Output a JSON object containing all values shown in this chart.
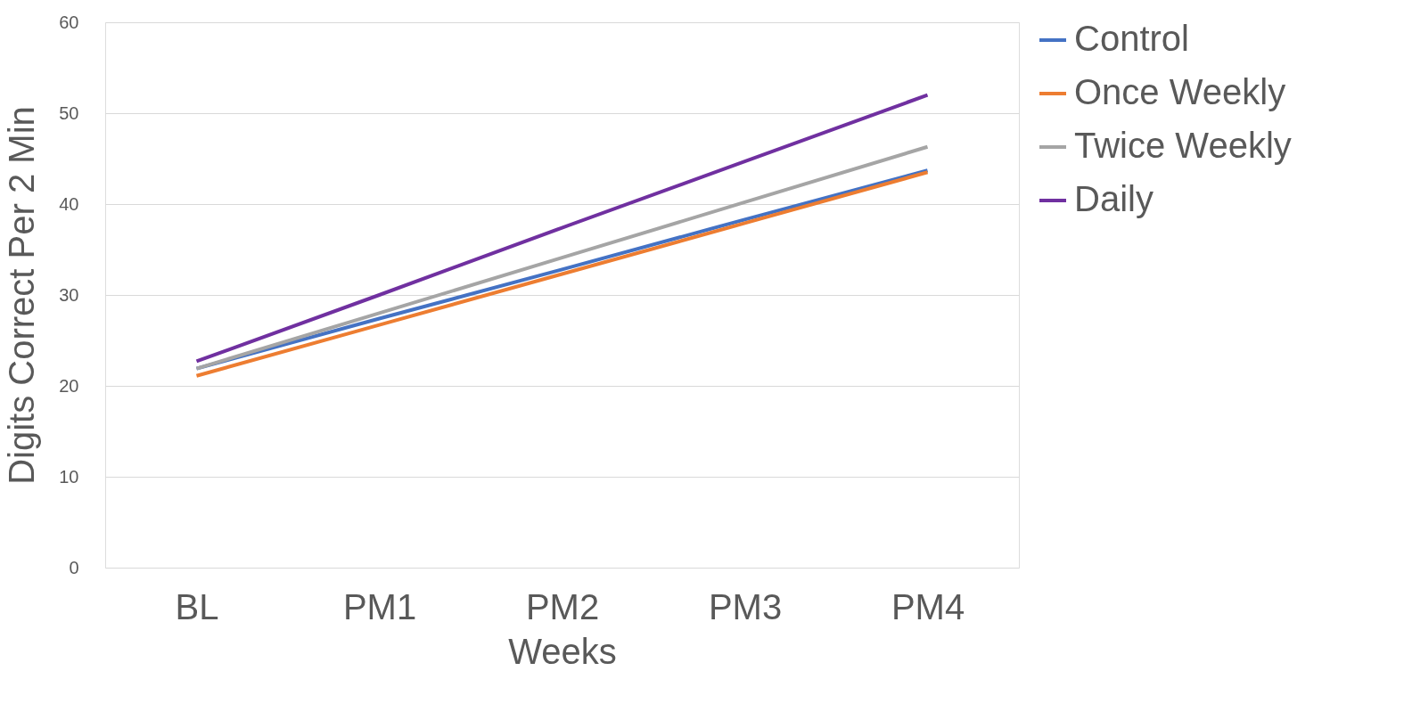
{
  "chart_data": {
    "type": "line",
    "xlabel": "Weeks",
    "ylabel": "Digits Correct Per 2 Min",
    "categories": [
      "BL",
      "PM1",
      "PM2",
      "PM3",
      "PM4"
    ],
    "series": [
      {
        "name": "Control",
        "color": "#4472c4",
        "values": [
          21.9,
          27.4,
          32.8,
          38.3,
          43.7
        ]
      },
      {
        "name": "Once Weekly",
        "color": "#ed7d31",
        "values": [
          21.1,
          26.7,
          32.3,
          37.9,
          43.5
        ]
      },
      {
        "name": "Twice Weekly",
        "color": "#a5a5a5",
        "values": [
          21.9,
          28.0,
          34.1,
          40.2,
          46.3
        ]
      },
      {
        "name": "Daily",
        "color": "#7030a0",
        "values": [
          22.7,
          30.0,
          37.4,
          44.7,
          52.0
        ]
      }
    ],
    "ylim": [
      0,
      60
    ],
    "yticks": [
      0,
      10,
      20,
      30,
      40,
      50,
      60
    ],
    "grid": "y",
    "legend": "right",
    "marker": "none",
    "line_style": "solid"
  }
}
